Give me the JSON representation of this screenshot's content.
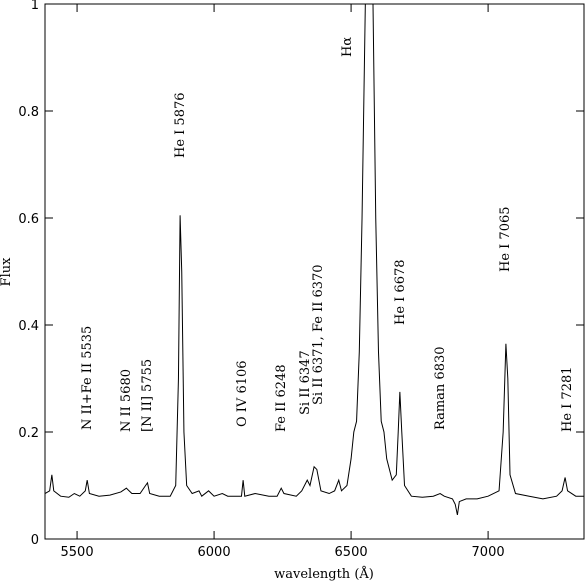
{
  "chart_data": {
    "type": "line",
    "xlabel": "wavelength (Å)",
    "ylabel": "Flux",
    "x": [
      5383,
      5400,
      5408,
      5415,
      5440,
      5470,
      5490,
      5510,
      5530,
      5537,
      5545,
      5580,
      5620,
      5660,
      5680,
      5700,
      5730,
      5750,
      5757,
      5765,
      5800,
      5840,
      5860,
      5870,
      5876,
      5882,
      5890,
      5900,
      5920,
      5945,
      5955,
      5980,
      6000,
      6030,
      6050,
      6080,
      6100,
      6106,
      6112,
      6150,
      6200,
      6230,
      6245,
      6255,
      6300,
      6320,
      6340,
      6350,
      6365,
      6375,
      6390,
      6420,
      6440,
      6455,
      6465,
      6485,
      6500,
      6510,
      6520,
      6530,
      6540,
      6552,
      6580,
      6590,
      6600,
      6610,
      6620,
      6630,
      6650,
      6665,
      6672,
      6678,
      6685,
      6695,
      6720,
      6760,
      6800,
      6825,
      6840,
      6870,
      6880,
      6888,
      6895,
      6920,
      6960,
      7000,
      7040,
      7055,
      7065,
      7072,
      7080,
      7100,
      7150,
      7200,
      7250,
      7270,
      7281,
      7290,
      7320,
      7350
    ],
    "y": [
      0.085,
      0.09,
      0.12,
      0.09,
      0.08,
      0.078,
      0.085,
      0.08,
      0.09,
      0.11,
      0.085,
      0.08,
      0.082,
      0.088,
      0.095,
      0.085,
      0.085,
      0.1,
      0.105,
      0.085,
      0.08,
      0.08,
      0.1,
      0.3,
      0.605,
      0.5,
      0.2,
      0.1,
      0.085,
      0.09,
      0.08,
      0.09,
      0.08,
      0.085,
      0.08,
      0.08,
      0.08,
      0.11,
      0.08,
      0.085,
      0.08,
      0.08,
      0.095,
      0.085,
      0.08,
      0.09,
      0.11,
      0.1,
      0.135,
      0.13,
      0.09,
      0.085,
      0.09,
      0.11,
      0.09,
      0.1,
      0.15,
      0.2,
      0.22,
      0.35,
      0.6,
      1.0,
      1.0,
      0.6,
      0.35,
      0.22,
      0.2,
      0.15,
      0.11,
      0.12,
      0.2,
      0.275,
      0.2,
      0.1,
      0.08,
      0.078,
      0.08,
      0.085,
      0.08,
      0.075,
      0.065,
      0.045,
      0.07,
      0.075,
      0.075,
      0.08,
      0.09,
      0.2,
      0.365,
      0.3,
      0.12,
      0.085,
      0.08,
      0.075,
      0.08,
      0.09,
      0.115,
      0.09,
      0.08,
      0.08
    ],
    "color": "#000000",
    "xlim": [
      5383,
      7350
    ],
    "ylim": [
      0,
      1
    ],
    "xticks": [
      5500,
      6000,
      6500,
      7000
    ],
    "yticks": [
      0,
      0.2,
      0.4,
      0.6,
      0.8,
      1
    ],
    "annotations": [
      "N II+Fe II 5535",
      "N II 5680",
      "[N II] 5755",
      "He I 5876",
      "O IV 6106",
      "Fe II 6248",
      "Si II 6347",
      "Si II 6371, Fe II 6370",
      "Hα",
      "He I 6678",
      "Raman 6830",
      "He I 7065",
      "He I 7281"
    ]
  }
}
